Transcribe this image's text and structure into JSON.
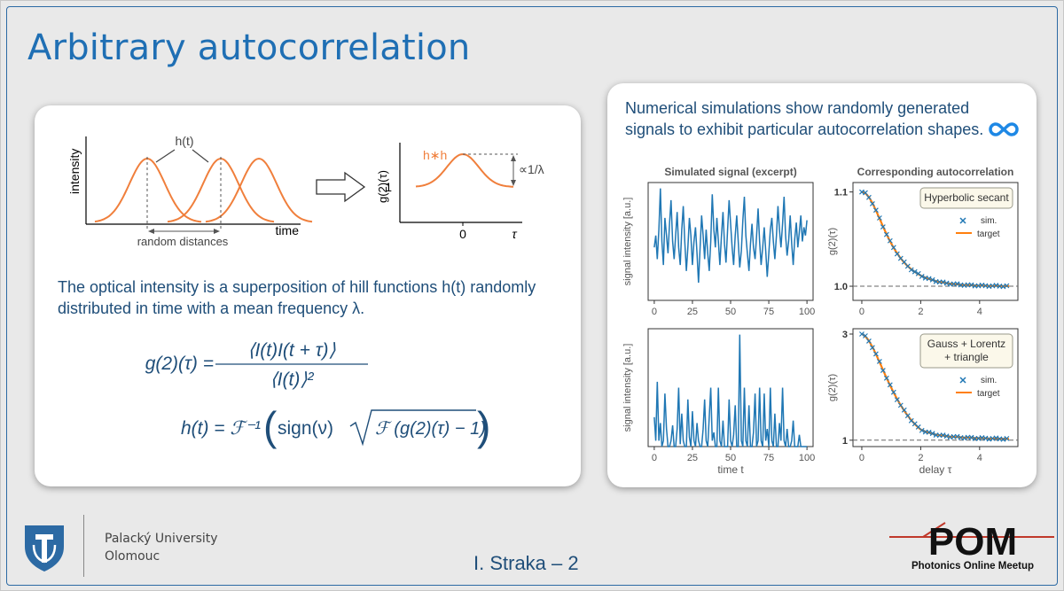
{
  "slide": {
    "title": "Arbitrary autocorrelation",
    "description": "The optical intensity is a superposition of hill functions h(t) randomly distributed in time with a mean frequency λ.",
    "right_intro": "Numerical simulations show randomly generated signals to exhibit particular autocorrelation shapes.",
    "university_line1": "Palacký University",
    "university_line2": "Olomouc",
    "author_page": "I. Straka – 2",
    "meetup_logo": "POM",
    "meetup_name": "Photonics Online Meetup",
    "loop_icon": "infinity-loop-icon"
  },
  "diagram": {
    "ylabel": "intensity",
    "xlabel": "time",
    "hill_label": "h(t)",
    "distance_label": "random distances",
    "g2_ylabel": "g(2)(τ)",
    "hh_label": "h∗h",
    "tick_one": "1",
    "tick_zero": "0",
    "tau_label": "τ",
    "prop_label": "∝1/λ"
  },
  "equations": {
    "eq1_lhs": "g(2)(τ) =",
    "eq1_num": "⟨I(t)I(t + τ)⟩",
    "eq1_den": "⟨I(t)⟩²",
    "eq2_lhs": "h(t) = ℱ⁻¹",
    "eq2_sign": "sign(ν)",
    "eq2_inner": "ℱ (g(2)(τ) − 1)"
  },
  "chart_data": [
    {
      "type": "line",
      "title": "Simulated signal (excerpt)",
      "ylabel": "signal intensity [a.u.]",
      "xlabel": "",
      "xlim": [
        -4,
        104
      ],
      "xticks": [
        0,
        25,
        50,
        75,
        100
      ],
      "ylim": [
        0,
        1
      ],
      "color": "#1f77b4",
      "x": [
        0,
        1,
        2,
        3,
        4,
        5,
        6,
        7,
        8,
        9,
        10,
        11,
        12,
        13,
        14,
        15,
        16,
        17,
        18,
        19,
        20,
        21,
        22,
        23,
        24,
        25,
        26,
        27,
        28,
        29,
        30,
        31,
        32,
        33,
        34,
        35,
        36,
        37,
        38,
        39,
        40,
        41,
        42,
        43,
        44,
        45,
        46,
        47,
        48,
        49,
        50,
        51,
        52,
        53,
        54,
        55,
        56,
        57,
        58,
        59,
        60,
        61,
        62,
        63,
        64,
        65,
        66,
        67,
        68,
        69,
        70,
        71,
        72,
        73,
        74,
        75,
        76,
        77,
        78,
        79,
        80,
        81,
        82,
        83,
        84,
        85,
        86,
        87,
        88,
        89,
        90,
        91,
        92,
        93,
        94,
        95,
        96,
        97,
        98,
        99,
        100
      ],
      "y": [
        0.45,
        0.55,
        0.35,
        0.6,
        0.95,
        0.5,
        0.3,
        0.7,
        0.55,
        0.4,
        0.65,
        0.85,
        0.5,
        0.35,
        0.55,
        0.75,
        0.45,
        0.3,
        0.6,
        0.8,
        0.5,
        0.25,
        0.45,
        0.7,
        0.55,
        0.3,
        0.5,
        0.62,
        0.4,
        0.15,
        0.45,
        0.72,
        0.55,
        0.35,
        0.6,
        0.4,
        0.25,
        0.5,
        0.9,
        0.6,
        0.45,
        0.7,
        0.5,
        0.3,
        0.55,
        0.75,
        0.48,
        0.32,
        0.6,
        0.85,
        0.65,
        0.45,
        0.3,
        0.55,
        0.72,
        0.5,
        0.28,
        0.42,
        0.68,
        0.88,
        0.55,
        0.4,
        0.25,
        0.48,
        0.65,
        0.45,
        0.35,
        0.55,
        0.78,
        0.5,
        0.3,
        0.45,
        0.62,
        0.42,
        0.2,
        0.4,
        0.6,
        0.7,
        0.5,
        0.35,
        0.55,
        0.8,
        0.6,
        0.45,
        0.65,
        0.88,
        0.55,
        0.38,
        0.5,
        0.72,
        0.48,
        0.3,
        0.52,
        0.66,
        0.45,
        0.58,
        0.72,
        0.5,
        0.62,
        0.55,
        0.68
      ]
    },
    {
      "type": "line",
      "title": "Corresponding autocorrelation",
      "ylabel": "g(2)(τ)",
      "xlabel": "",
      "xlim": [
        -0.3,
        5.3
      ],
      "xticks": [
        0,
        2,
        4
      ],
      "ylim": [
        0.985,
        1.11
      ],
      "yticks": [
        1.0,
        1.1
      ],
      "ytick_labels": [
        "1.0",
        "1.1"
      ],
      "baseline": 1.0,
      "legend_box": "Hyperbolic secant",
      "legend_position": "top-right",
      "target_kind": "sech",
      "target_scale": 0.7,
      "target_amplitude": 0.1,
      "target_color": "#ff7f0e",
      "sim_color": "#1f77b4",
      "series": [
        {
          "name": "sim.",
          "marker": "x"
        },
        {
          "name": "target",
          "marker": "line"
        }
      ]
    },
    {
      "type": "line",
      "title": "",
      "ylabel": "signal intensity [a.u.]",
      "xlabel": "time t",
      "xlim": [
        -4,
        104
      ],
      "xticks": [
        0,
        25,
        50,
        75,
        100
      ],
      "ylim": [
        0,
        1
      ],
      "color": "#1f77b4",
      "x": [
        0,
        1,
        2,
        3,
        4,
        5,
        6,
        7,
        8,
        9,
        10,
        11,
        12,
        13,
        14,
        15,
        16,
        17,
        18,
        19,
        20,
        21,
        22,
        23,
        24,
        25,
        26,
        27,
        28,
        29,
        30,
        31,
        32,
        33,
        34,
        35,
        36,
        37,
        38,
        39,
        40,
        41,
        42,
        43,
        44,
        45,
        46,
        47,
        48,
        49,
        50,
        51,
        52,
        53,
        54,
        55,
        56,
        57,
        58,
        59,
        60,
        61,
        62,
        63,
        64,
        65,
        66,
        67,
        68,
        69,
        70,
        71,
        72,
        73,
        74,
        75,
        76,
        77,
        78,
        79,
        80,
        81,
        82,
        83,
        84,
        85,
        86,
        87,
        88,
        89,
        90,
        91,
        92,
        93,
        94,
        95,
        96,
        97,
        98,
        99,
        100
      ],
      "y": [
        0.25,
        0.05,
        0.55,
        0.05,
        0.2,
        0.0,
        0.05,
        0.45,
        0.15,
        0.0,
        0.0,
        0.05,
        0.18,
        0.0,
        0.0,
        0.15,
        0.5,
        0.02,
        0.28,
        0.05,
        0.0,
        0.0,
        0.4,
        0.08,
        0.0,
        0.3,
        0.05,
        0.0,
        0.2,
        0.05,
        0.0,
        0.0,
        0.15,
        0.4,
        0.05,
        0.0,
        0.25,
        0.5,
        0.05,
        0.12,
        0.0,
        0.0,
        0.5,
        0.05,
        0.0,
        0.22,
        0.0,
        0.0,
        0.0,
        0.4,
        0.05,
        0.0,
        0.1,
        0.35,
        0.0,
        0.0,
        0.95,
        0.05,
        0.0,
        0.5,
        0.05,
        0.0,
        0.35,
        0.0,
        0.0,
        0.12,
        0.45,
        0.0,
        0.05,
        0.5,
        0.05,
        0.0,
        0.45,
        0.05,
        0.15,
        0.0,
        0.5,
        0.05,
        0.0,
        0.28,
        0.0,
        0.0,
        0.2,
        0.05,
        0.5,
        0.05,
        0.0,
        0.15,
        0.0,
        0.0,
        0.05,
        0.22,
        0.0,
        0.0,
        0.0,
        0.1,
        0.0,
        0.0,
        0.0,
        0.0,
        0.0
      ]
    },
    {
      "type": "line",
      "title": "",
      "ylabel": "g(2)(τ)",
      "xlabel": "delay τ",
      "xlim": [
        -0.3,
        5.3
      ],
      "xticks": [
        0,
        2,
        4
      ],
      "ylim": [
        0.88,
        3.1
      ],
      "yticks": [
        1,
        3
      ],
      "ytick_labels": [
        "1",
        "3"
      ],
      "baseline": 1.0,
      "legend_box": "Gauss + Lorentz + triangle",
      "legend_position": "top-right",
      "target_kind": "mix",
      "target_scale": 0.9,
      "target_amplitude": 2.0,
      "target_color": "#ff7f0e",
      "sim_color": "#1f77b4",
      "series": [
        {
          "name": "sim.",
          "marker": "x"
        },
        {
          "name": "target",
          "marker": "line"
        }
      ]
    }
  ],
  "colors": {
    "accent_blue": "#1f6fb4",
    "text_dark_blue": "#1f4e79",
    "hill_orange": "#f07f3c",
    "plot_blue": "#1f77b4",
    "plot_orange": "#ff7f0e",
    "pom_red": "#c0392b"
  }
}
